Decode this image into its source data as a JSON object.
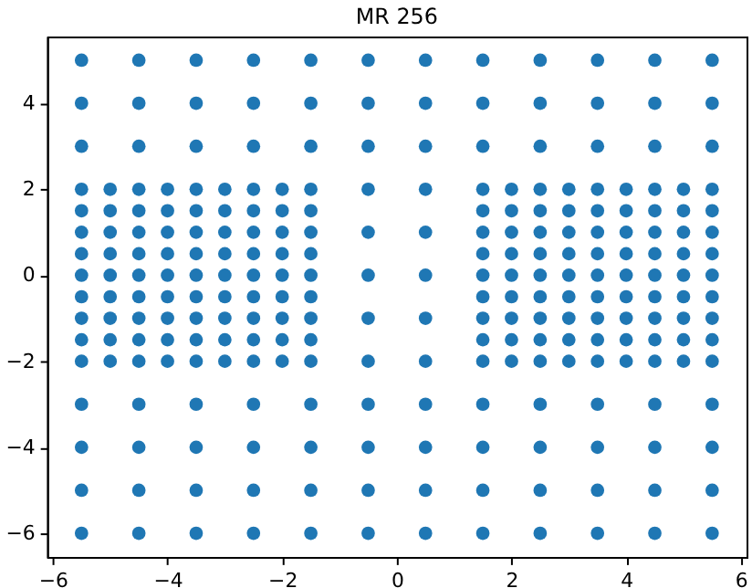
{
  "chart_data": {
    "type": "scatter",
    "title": "MR 256",
    "x": [
      -5.5,
      -4.5,
      -3.5,
      -2.5,
      -1.5,
      -0.5,
      0.5,
      1.5,
      2.5,
      3.5,
      4.5,
      5.5,
      -5.5,
      -4.5,
      -3.5,
      -2.5,
      -1.5,
      -0.5,
      0.5,
      1.5,
      2.5,
      3.5,
      4.5,
      5.5,
      -5.5,
      -4.5,
      -3.5,
      -2.5,
      -1.5,
      -0.5,
      0.5,
      1.5,
      2.5,
      3.5,
      4.5,
      5.5,
      -5.5,
      -5,
      -4.5,
      -4,
      -3.5,
      -3,
      -2.5,
      -2,
      -1.5,
      -0.5,
      0.5,
      1.5,
      2,
      2.5,
      3,
      3.5,
      4,
      4.5,
      5,
      5.5,
      -5.5,
      -5,
      -4.5,
      -4,
      -3.5,
      -3,
      -2.5,
      -2,
      -1.5,
      1.5,
      2,
      2.5,
      3,
      3.5,
      4,
      4.5,
      5,
      5.5,
      -5.5,
      -5,
      -4.5,
      -4,
      -3.5,
      -3,
      -2.5,
      -2,
      -1.5,
      -0.5,
      0.5,
      1.5,
      2,
      2.5,
      3,
      3.5,
      4,
      4.5,
      5,
      5.5,
      -5.5,
      -5,
      -4.5,
      -4,
      -3.5,
      -3,
      -2.5,
      -2,
      -1.5,
      1.5,
      2,
      2.5,
      3,
      3.5,
      4,
      4.5,
      5,
      5.5,
      -5.5,
      -5,
      -4.5,
      -4,
      -3.5,
      -3,
      -2.5,
      -2,
      -1.5,
      -0.5,
      0.5,
      1.5,
      2,
      2.5,
      3,
      3.5,
      4,
      4.5,
      5,
      5.5,
      -5.5,
      -5,
      -4.5,
      -4,
      -3.5,
      -3,
      -2.5,
      -2,
      -1.5,
      1.5,
      2,
      2.5,
      3,
      3.5,
      4,
      4.5,
      5,
      5.5,
      -5.5,
      -5,
      -4.5,
      -4,
      -3.5,
      -3,
      -2.5,
      -2,
      -1.5,
      -0.5,
      0.5,
      1.5,
      2,
      2.5,
      3,
      3.5,
      4,
      4.5,
      5,
      5.5,
      -5.5,
      -5,
      -4.5,
      -4,
      -3.5,
      -3,
      -2.5,
      -2,
      -1.5,
      1.5,
      2,
      2.5,
      3,
      3.5,
      4,
      4.5,
      5,
      5.5,
      -5.5,
      -5,
      -4.5,
      -4,
      -3.5,
      -3,
      -2.5,
      -2,
      -1.5,
      -0.5,
      0.5,
      1.5,
      2,
      2.5,
      3,
      3.5,
      4,
      4.5,
      5,
      5.5,
      -5.5,
      -4.5,
      -3.5,
      -2.5,
      -1.5,
      -0.5,
      0.5,
      1.5,
      2.5,
      3.5,
      4.5,
      5.5,
      -5.5,
      -4.5,
      -3.5,
      -2.5,
      -1.5,
      -0.5,
      0.5,
      1.5,
      2.5,
      3.5,
      4.5,
      5.5,
      -5.5,
      -4.5,
      -3.5,
      -2.5,
      -1.5,
      -0.5,
      0.5,
      1.5,
      2.5,
      3.5,
      4.5,
      5.5,
      -5.5,
      -4.5,
      -3.5,
      -2.5,
      -1.5,
      -0.5,
      0.5,
      1.5,
      2.5,
      3.5,
      4.5,
      5.5
    ],
    "series": [
      {
        "color": "#1f77b4",
        "values": [
          5,
          5,
          5,
          5,
          5,
          5,
          5,
          5,
          5,
          5,
          5,
          5,
          4,
          4,
          4,
          4,
          4,
          4,
          4,
          4,
          4,
          4,
          4,
          4,
          3,
          3,
          3,
          3,
          3,
          3,
          3,
          3,
          3,
          3,
          3,
          3,
          2,
          2,
          2,
          2,
          2,
          2,
          2,
          2,
          2,
          2,
          2,
          2,
          2,
          2,
          2,
          2,
          2,
          2,
          2,
          2,
          1.5,
          1.5,
          1.5,
          1.5,
          1.5,
          1.5,
          1.5,
          1.5,
          1.5,
          1.5,
          1.5,
          1.5,
          1.5,
          1.5,
          1.5,
          1.5,
          1.5,
          1.5,
          1,
          1,
          1,
          1,
          1,
          1,
          1,
          1,
          1,
          1,
          1,
          1,
          1,
          1,
          1,
          1,
          1,
          1,
          1,
          1,
          0.5,
          0.5,
          0.5,
          0.5,
          0.5,
          0.5,
          0.5,
          0.5,
          0.5,
          0.5,
          0.5,
          0.5,
          0.5,
          0.5,
          0.5,
          0.5,
          0.5,
          0.5,
          0,
          0,
          0,
          0,
          0,
          0,
          0,
          0,
          0,
          0,
          0,
          0,
          0,
          0,
          0,
          0,
          0,
          0,
          0,
          0,
          -0.5,
          -0.5,
          -0.5,
          -0.5,
          -0.5,
          -0.5,
          -0.5,
          -0.5,
          -0.5,
          -0.5,
          -0.5,
          -0.5,
          -0.5,
          -0.5,
          -0.5,
          -0.5,
          -0.5,
          -0.5,
          -1,
          -1,
          -1,
          -1,
          -1,
          -1,
          -1,
          -1,
          -1,
          -1,
          -1,
          -1,
          -1,
          -1,
          -1,
          -1,
          -1,
          -1,
          -1,
          -1,
          -1.5,
          -1.5,
          -1.5,
          -1.5,
          -1.5,
          -1.5,
          -1.5,
          -1.5,
          -1.5,
          -1.5,
          -1.5,
          -1.5,
          -1.5,
          -1.5,
          -1.5,
          -1.5,
          -1.5,
          -1.5,
          -2,
          -2,
          -2,
          -2,
          -2,
          -2,
          -2,
          -2,
          -2,
          -2,
          -2,
          -2,
          -2,
          -2,
          -2,
          -2,
          -2,
          -2,
          -2,
          -2,
          -3,
          -3,
          -3,
          -3,
          -3,
          -3,
          -3,
          -3,
          -3,
          -3,
          -3,
          -3,
          -4,
          -4,
          -4,
          -4,
          -4,
          -4,
          -4,
          -4,
          -4,
          -4,
          -4,
          -4,
          -5,
          -5,
          -5,
          -5,
          -5,
          -5,
          -5,
          -5,
          -5,
          -5,
          -5,
          -5,
          -6,
          -6,
          -6,
          -6,
          -6,
          -6,
          -6,
          -6,
          -6,
          -6,
          -6,
          -6
        ]
      }
    ],
    "xlim": [
      -6.1,
      6.1
    ],
    "ylim": [
      -6.55,
      5.55
    ],
    "xticks": [
      {
        "value": -6,
        "label": "−6"
      },
      {
        "value": -4,
        "label": "−4"
      },
      {
        "value": -2,
        "label": "−2"
      },
      0,
      2,
      4,
      6
    ],
    "yticks": [
      {
        "value": -6,
        "label": "−6"
      },
      {
        "value": -4,
        "label": "−4"
      },
      {
        "value": -2,
        "label": "−2"
      },
      0,
      2,
      4
    ],
    "grid": false,
    "marker": "circle"
  }
}
